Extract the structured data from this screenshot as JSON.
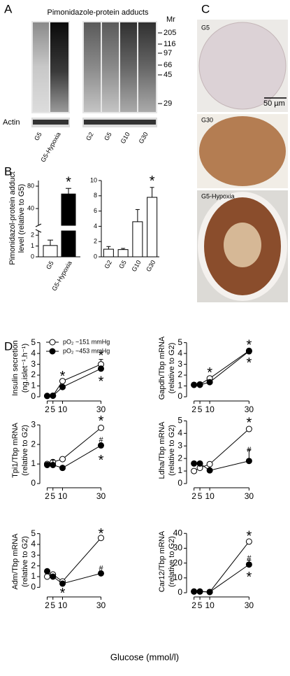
{
  "panel_labels": [
    "A",
    "B",
    "C",
    "D"
  ],
  "panel_a": {
    "title": "Pimonidazole-protein adducts",
    "mr_label": "Mr",
    "mr_markers": [
      205,
      116,
      97,
      66,
      45,
      29
    ],
    "loading_control": "Actin",
    "lanes_left": [
      "G5",
      "G5-Hypoxia"
    ],
    "lanes_right": [
      "G2",
      "G5",
      "G10",
      "G30"
    ]
  },
  "panel_c": {
    "images": [
      "G5",
      "G30",
      "G5-Hypoxia"
    ],
    "scale_bar": "50 µm"
  },
  "panel_d": {
    "xlabel": "Glucose (mmol/l)"
  },
  "chart_data": [
    {
      "type": "broken-bar",
      "ylabel": [
        "Pimonidazol-protein adduct",
        "level (relative to G5)"
      ],
      "categories": [
        "G5",
        "G5-Hypoxia"
      ],
      "values": [
        1.05,
        66
      ],
      "errors": [
        0.5,
        10
      ],
      "colors": [
        "#ffffff",
        "#000000"
      ],
      "segments": [
        {
          "ylim": [
            0,
            2.4
          ],
          "yticks": [
            0,
            1,
            2
          ]
        },
        {
          "ylim": [
            10,
            90
          ],
          "yticks": [
            40,
            80
          ]
        }
      ],
      "annotations": [
        {
          "text": "*",
          "category": 1
        }
      ]
    },
    {
      "type": "bar",
      "categories": [
        "G2",
        "G5",
        "G10",
        "G30"
      ],
      "values": [
        1.0,
        0.95,
        4.6,
        7.8
      ],
      "errors": [
        0.35,
        0.15,
        1.6,
        1.3
      ],
      "color": "#ffffff",
      "ylim": [
        0,
        10
      ],
      "yticks": [
        0,
        2,
        4,
        6,
        8,
        10
      ],
      "annotations": [
        {
          "text": "*",
          "category": 3
        }
      ]
    },
    {
      "type": "line",
      "ylabel": [
        "Insulin secretion",
        "(ng.islet⁻¹.h⁻¹)"
      ],
      "x": [
        2,
        5,
        10,
        30
      ],
      "xlim": [
        0,
        32
      ],
      "xticks": [
        2,
        5,
        10,
        30
      ],
      "ylim": [
        0,
        5.3
      ],
      "yticks": [
        0,
        1,
        2,
        3,
        4,
        5
      ],
      "legend": "top-left",
      "series": [
        {
          "name": "pO₂ ~151 mmHg",
          "color": "#000000",
          "fill": "#ffffff",
          "values": [
            0.08,
            0.1,
            1.45,
            3.0
          ],
          "errors": [
            null,
            null,
            null,
            0.45
          ]
        },
        {
          "name": "pO₂ ~453 mmHg",
          "color": "#000000",
          "fill": "#000000",
          "values": [
            0.08,
            0.1,
            0.9,
            2.6
          ],
          "errors": [
            null,
            null,
            null,
            null
          ]
        }
      ],
      "annotations": [
        {
          "text": "*",
          "x": 10,
          "y": 2.1
        },
        {
          "text": "*",
          "x": 30,
          "y": 4.0
        },
        {
          "text": "*",
          "x": 30,
          "y": 1.6
        }
      ]
    },
    {
      "type": "line",
      "ylabel": [
        "Gapdh/Tbp mRNA",
        "(relative to G2)"
      ],
      "x": [
        2,
        5,
        10,
        30
      ],
      "xlim": [
        0,
        32
      ],
      "xticks": [
        2,
        5,
        10,
        30
      ],
      "ylim": [
        0,
        5.3
      ],
      "yticks": [
        0,
        1,
        2,
        3,
        4,
        5
      ],
      "series": [
        {
          "color": "#000000",
          "fill": "#ffffff",
          "values": [
            1.1,
            1.15,
            1.7,
            4.25
          ],
          "errors": [
            null,
            null,
            null,
            null
          ]
        },
        {
          "color": "#000000",
          "fill": "#000000",
          "values": [
            1.1,
            1.1,
            1.35,
            4.2
          ],
          "errors": [
            null,
            null,
            null,
            null
          ]
        }
      ],
      "annotations": [
        {
          "text": "*",
          "x": 10,
          "y": 2.4
        },
        {
          "text": "*",
          "x": 30,
          "y": 4.95
        },
        {
          "text": "*",
          "x": 30,
          "y": 3.3
        }
      ]
    },
    {
      "type": "line",
      "ylabel": [
        "Tpi1/Tbp mRNA",
        "(relative to G2)"
      ],
      "x": [
        2,
        5,
        10,
        30
      ],
      "xlim": [
        0,
        32
      ],
      "xticks": [
        2,
        5,
        10,
        30
      ],
      "ylim": [
        0,
        3.4
      ],
      "yticks": [
        0,
        1,
        2,
        3
      ],
      "series": [
        {
          "color": "#000000",
          "fill": "#ffffff",
          "values": [
            1.0,
            1.1,
            1.25,
            2.85
          ],
          "errors": [
            null,
            null,
            null,
            null
          ]
        },
        {
          "color": "#000000",
          "fill": "#000000",
          "values": [
            0.95,
            0.95,
            0.8,
            1.95
          ],
          "errors": [
            null,
            0.25,
            null,
            null
          ]
        }
      ],
      "annotations": [
        {
          "text": "*",
          "x": 30,
          "y": 3.3
        },
        {
          "text": "#",
          "x": 30,
          "y": 2.35
        },
        {
          "text": "*",
          "x": 30,
          "y": 1.3
        }
      ]
    },
    {
      "type": "line",
      "ylabel": [
        "Ldha/Tbp mRNA",
        "(relative to G2)"
      ],
      "x": [
        2,
        5,
        10,
        30
      ],
      "xlim": [
        0,
        32
      ],
      "xticks": [
        2,
        5,
        10,
        30
      ],
      "ylim": [
        0,
        5.3
      ],
      "yticks": [
        0,
        1,
        2,
        3,
        4,
        5
      ],
      "series": [
        {
          "color": "#000000",
          "fill": "#ffffff",
          "values": [
            1.0,
            1.25,
            1.55,
            4.35
          ],
          "errors": [
            null,
            null,
            null,
            null
          ]
        },
        {
          "color": "#000000",
          "fill": "#000000",
          "values": [
            1.6,
            1.6,
            1.05,
            1.8
          ],
          "errors": [
            null,
            null,
            null,
            0.9
          ]
        }
      ],
      "annotations": [
        {
          "text": "*",
          "x": 30,
          "y": 5.0
        },
        {
          "text": "#",
          "x": 30,
          "y": 2.9
        }
      ]
    },
    {
      "type": "line",
      "ylabel": [
        "Adm/Tbp mRNA",
        "(relative to G2)"
      ],
      "x": [
        2,
        5,
        10,
        30
      ],
      "xlim": [
        0,
        32
      ],
      "xticks": [
        2,
        5,
        10,
        30
      ],
      "ylim": [
        -0.5,
        5.3
      ],
      "yticks": [
        0,
        1,
        2,
        3,
        4,
        5
      ],
      "series": [
        {
          "color": "#000000",
          "fill": "#ffffff",
          "values": [
            1.0,
            1.2,
            0.55,
            4.6
          ],
          "errors": [
            null,
            null,
            null,
            null
          ]
        },
        {
          "color": "#000000",
          "fill": "#000000",
          "values": [
            1.5,
            1.0,
            0.35,
            1.3
          ],
          "errors": [
            null,
            null,
            null,
            null
          ]
        }
      ],
      "annotations": [
        {
          "text": "*",
          "x": 10,
          "y": -0.35
        },
        {
          "text": "*",
          "x": 30,
          "y": 5.2
        },
        {
          "text": "#",
          "x": 30,
          "y": 2.0
        }
      ]
    },
    {
      "type": "line",
      "ylabel": [
        "Car12/Tbp mRNA",
        "(relative to G2)"
      ],
      "x": [
        2,
        5,
        10,
        30
      ],
      "xlim": [
        0,
        32
      ],
      "xticks": [
        2,
        5,
        10,
        30
      ],
      "ylim": [
        0,
        42
      ],
      "yticks": [
        0,
        10,
        20,
        30,
        40
      ],
      "series": [
        {
          "color": "#000000",
          "fill": "#ffffff",
          "values": [
            0.8,
            0.8,
            0.5,
            34.5
          ],
          "errors": [
            null,
            null,
            null,
            null
          ]
        },
        {
          "color": "#000000",
          "fill": "#000000",
          "values": [
            0.8,
            0.8,
            0.5,
            19
          ],
          "errors": [
            null,
            null,
            null,
            3
          ]
        }
      ],
      "annotations": [
        {
          "text": "*",
          "x": 30,
          "y": 39.5
        },
        {
          "text": "#",
          "x": 30,
          "y": 25
        },
        {
          "text": "*",
          "x": 30,
          "y": 12
        }
      ]
    }
  ]
}
